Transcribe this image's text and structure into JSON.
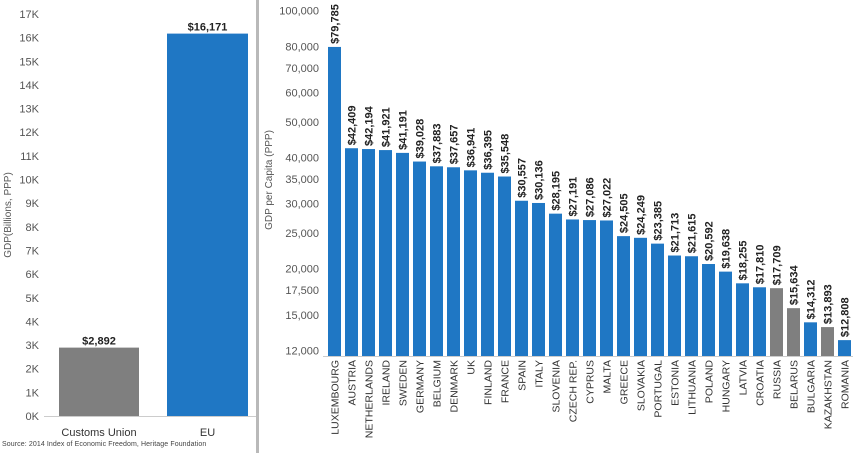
{
  "source_note": "Source:  2014 Index of Economic Freedom, Heritage Foundation",
  "colors": {
    "eu_bar": "#1f77c4",
    "non_eu_bar": "#7f7f7f",
    "axis_text": "#555555",
    "label_text": "#222222",
    "divider": "#b9b9b9"
  },
  "chart_data": [
    {
      "type": "bar",
      "ylabel": "GDP(Billions, PPP)",
      "yticks": [
        "0K",
        "1K",
        "2K",
        "3K",
        "4K",
        "5K",
        "6K",
        "7K",
        "8K",
        "9K",
        "10K",
        "11K",
        "12K",
        "13K",
        "14K",
        "15K",
        "16K",
        "17K"
      ],
      "ylim": [
        0,
        17000
      ],
      "categories": [
        "Customs Union",
        "EU"
      ],
      "values": [
        2892,
        16171
      ],
      "data_labels": [
        "$2,892",
        "$16,171"
      ],
      "bar_colors": [
        "#7f7f7f",
        "#1f77c4"
      ]
    },
    {
      "type": "bar",
      "ylabel": "GDP per Capita (PPP)",
      "yscale": "log",
      "ylim": [
        11600,
        103000
      ],
      "ytick_values": [
        12000,
        15000,
        17500,
        20000,
        25000,
        30000,
        35000,
        40000,
        50000,
        60000,
        70000,
        80000,
        100000
      ],
      "yticks": [
        "12,000",
        "15,000",
        "17,500",
        "20,000",
        "25,000",
        "30,000",
        "35,000",
        "40,000",
        "50,000",
        "60,000",
        "70,000",
        "80,000",
        "100,000"
      ],
      "categories": [
        "LUXEMBOURG",
        "AUSTRIA",
        "NETHERLANDS",
        "IRELAND",
        "SWEDEN",
        "GERMANY",
        "BELGIUM",
        "DENMARK",
        "UK",
        "FINLAND",
        "FRANCE",
        "SPAIN",
        "ITALY",
        "SLOVENIA",
        "CZECH REP.",
        "CYPRUS",
        "MALTA",
        "GREECE",
        "SLOVAKIA",
        "PORTUGAL",
        "ESTONIA",
        "LITHUANIA",
        "POLAND",
        "HUNGARY",
        "LATVIA",
        "CROATIA",
        "RUSSIA",
        "BELARUS",
        "BULGARIA",
        "KAZAKHSTAN",
        "ROMANIA"
      ],
      "values": [
        79785,
        42409,
        42194,
        41921,
        41191,
        39028,
        37883,
        37657,
        36941,
        36395,
        35548,
        30557,
        30136,
        28195,
        27191,
        27086,
        27022,
        24505,
        24249,
        23385,
        21713,
        21615,
        20592,
        19638,
        18255,
        17810,
        17709,
        15634,
        14312,
        13893,
        12808
      ],
      "data_labels": [
        "$79,785",
        "$42,409",
        "$42,194",
        "$41,921",
        "$41,191",
        "$39,028",
        "$37,883",
        "$37,657",
        "$36,941",
        "$36,395",
        "$35,548",
        "$30,557",
        "$30,136",
        "$28,195",
        "$27,191",
        "$27,086",
        "$27,022",
        "$24,505",
        "$24,249",
        "$23,385",
        "$21,713",
        "$21,615",
        "$20,592",
        "$19,638",
        "$18,255",
        "$17,810",
        "$17,709",
        "$15,634",
        "$14,312",
        "$13,893",
        "$12,808"
      ],
      "bar_groups": [
        "EU",
        "EU",
        "EU",
        "EU",
        "EU",
        "EU",
        "EU",
        "EU",
        "EU",
        "EU",
        "EU",
        "EU",
        "EU",
        "EU",
        "EU",
        "EU",
        "EU",
        "EU",
        "EU",
        "EU",
        "EU",
        "EU",
        "EU",
        "EU",
        "EU",
        "EU",
        "Customs Union",
        "Customs Union",
        "EU",
        "Customs Union",
        "EU"
      ]
    }
  ]
}
